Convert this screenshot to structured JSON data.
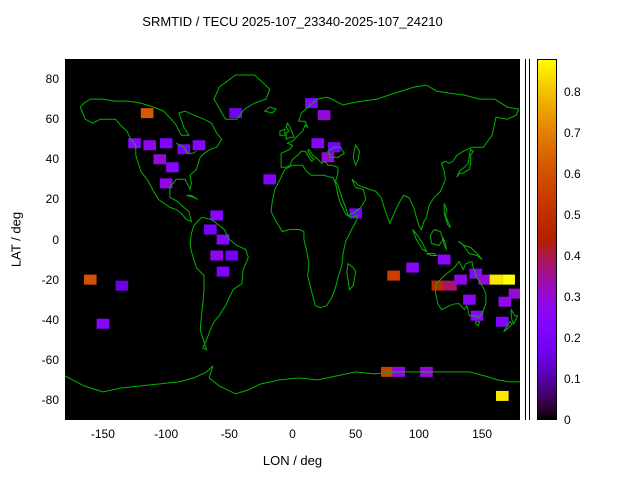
{
  "chart_data": {
    "type": "heatmap",
    "title": "SRMTID / TECU 2025-107_23340-2025-107_24210",
    "xlabel": "LON / deg",
    "ylabel": "LAT / deg",
    "xlim": [
      -180,
      180
    ],
    "ylim": [
      -90,
      90
    ],
    "x_ticks": [
      -150,
      -100,
      -50,
      0,
      50,
      100,
      150
    ],
    "y_ticks": [
      -80,
      -60,
      -40,
      -20,
      0,
      20,
      40,
      60,
      80
    ],
    "grid": false,
    "background_color": "#000000",
    "coastline_color": "#00b400",
    "palette": "gnuplot pm3d (black-violet-red-orange-yellow)",
    "colorbar": {
      "position": "right",
      "min": 0,
      "max": 0.88,
      "ticks": [
        0,
        0.1,
        0.2,
        0.3,
        0.4,
        0.5,
        0.6,
        0.7,
        0.8
      ]
    },
    "cell_size": {
      "lon_deg": 10,
      "lat_deg": 5
    },
    "cells": [
      [
        -115,
        63,
        0.62
      ],
      [
        -45,
        63,
        0.18
      ],
      [
        15,
        68,
        0.22
      ],
      [
        25,
        62,
        0.3
      ],
      [
        -125,
        48,
        0.25
      ],
      [
        -113,
        47,
        0.28
      ],
      [
        -100,
        48,
        0.22
      ],
      [
        -86,
        45,
        0.2
      ],
      [
        -74,
        47,
        0.25
      ],
      [
        -105,
        40,
        0.3
      ],
      [
        -95,
        36,
        0.25
      ],
      [
        -100,
        28,
        0.28
      ],
      [
        -18,
        30,
        0.22
      ],
      [
        20,
        48,
        0.25
      ],
      [
        33,
        46,
        0.2
      ],
      [
        28,
        41,
        0.3
      ],
      [
        -60,
        12,
        0.25
      ],
      [
        50,
        13,
        0.2
      ],
      [
        -65,
        5,
        0.2
      ],
      [
        -55,
        0,
        0.25
      ],
      [
        -60,
        -8,
        0.28
      ],
      [
        -48,
        -8,
        0.18
      ],
      [
        -55,
        -16,
        0.22
      ],
      [
        -160,
        -20,
        0.6
      ],
      [
        -135,
        -23,
        0.15
      ],
      [
        -150,
        -42,
        0.25
      ],
      [
        80,
        -18,
        0.55
      ],
      [
        95,
        -14,
        0.25
      ],
      [
        120,
        -10,
        0.25
      ],
      [
        115,
        -23,
        0.48
      ],
      [
        125,
        -23,
        0.38
      ],
      [
        133,
        -20,
        0.28
      ],
      [
        145,
        -17,
        0.25
      ],
      [
        152,
        -20,
        0.3
      ],
      [
        161,
        -20,
        0.85
      ],
      [
        171,
        -20,
        0.88
      ],
      [
        176,
        -27,
        0.3
      ],
      [
        140,
        -30,
        0.25
      ],
      [
        168,
        -31,
        0.28
      ],
      [
        146,
        -38,
        0.25
      ],
      [
        166,
        -41,
        0.22
      ],
      [
        75,
        -66,
        0.55
      ],
      [
        84,
        -66,
        0.28
      ],
      [
        106,
        -66,
        0.3
      ],
      [
        166,
        -78,
        0.85
      ]
    ]
  }
}
